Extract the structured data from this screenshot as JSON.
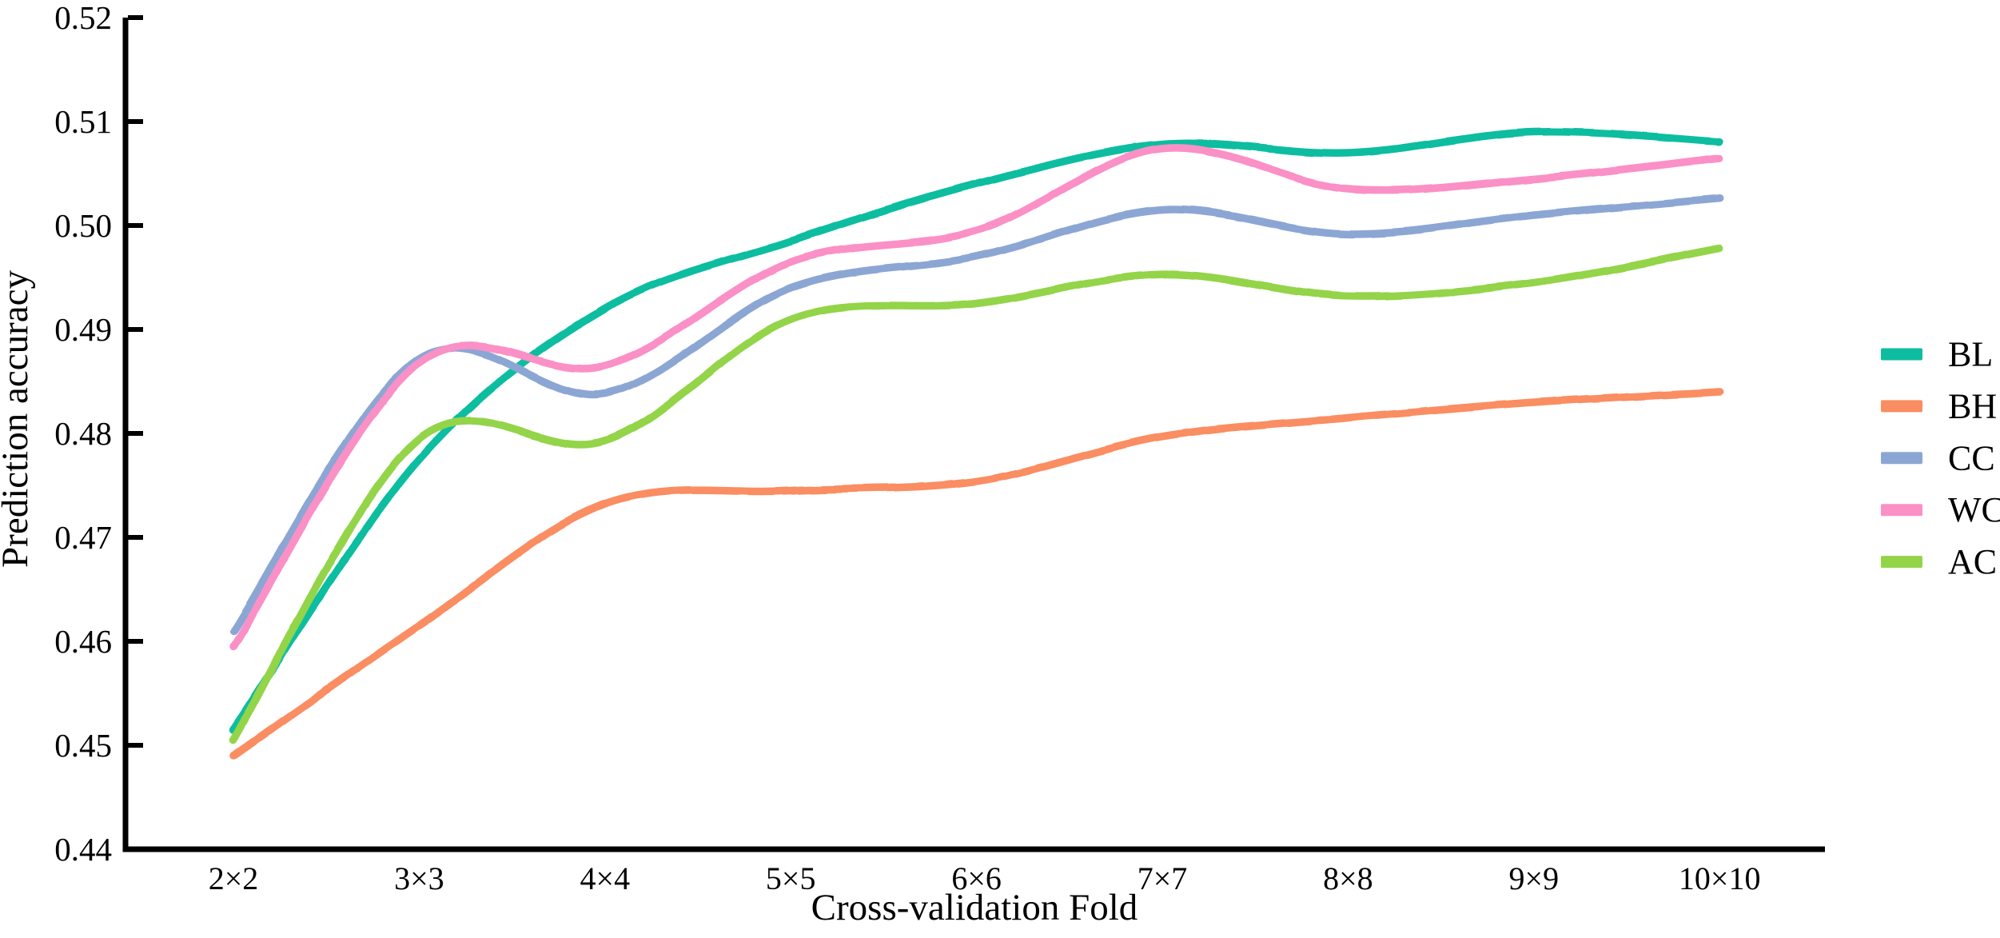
{
  "figure": {
    "background": "#ffffff",
    "axis_color": "#000000",
    "text_color": "#000000"
  },
  "chart_data": {
    "type": "line",
    "title": "",
    "xlabel": "Cross-validation Fold",
    "ylabel": "Prediction accuracy",
    "categories": [
      "2×2",
      "3×3",
      "4×4",
      "5×5",
      "6×6",
      "7×7",
      "8×8",
      "9×9",
      "10×10"
    ],
    "y_tick_labels": [
      "0.44",
      "0.45",
      "0.46",
      "0.47",
      "0.48",
      "0.49",
      "0.50",
      "0.51",
      "0.52"
    ],
    "ylim": [
      0.44,
      0.52
    ],
    "y_tick_step": 0.01,
    "grid": false,
    "legend_position": "right-outside",
    "legend": [
      "BL",
      "BH",
      "CC",
      "WC",
      "AC"
    ],
    "series": [
      {
        "name": "BL",
        "color": "#0cbda0",
        "values": [
          0.4515,
          0.4775,
          0.492,
          0.4985,
          0.504,
          0.5078,
          0.507,
          0.509,
          0.5081
        ]
      },
      {
        "name": "BH",
        "color": "#fa8d62",
        "values": [
          0.449,
          0.4615,
          0.4732,
          0.4745,
          0.4754,
          0.4797,
          0.4815,
          0.483,
          0.484
        ]
      },
      {
        "name": "CC",
        "color": "#8ca6d4",
        "values": [
          0.461,
          0.4872,
          0.4838,
          0.494,
          0.497,
          0.5015,
          0.4992,
          0.501,
          0.5026
        ]
      },
      {
        "name": "WC",
        "color": "#fa90c6",
        "values": [
          0.4595,
          0.4868,
          0.4865,
          0.4965,
          0.4995,
          0.5074,
          0.5035,
          0.5045,
          0.5065
        ]
      },
      {
        "name": "AC",
        "color": "#93d449",
        "values": [
          0.4505,
          0.4795,
          0.4793,
          0.491,
          0.4925,
          0.4953,
          0.4932,
          0.4945,
          0.4978
        ]
      }
    ]
  }
}
